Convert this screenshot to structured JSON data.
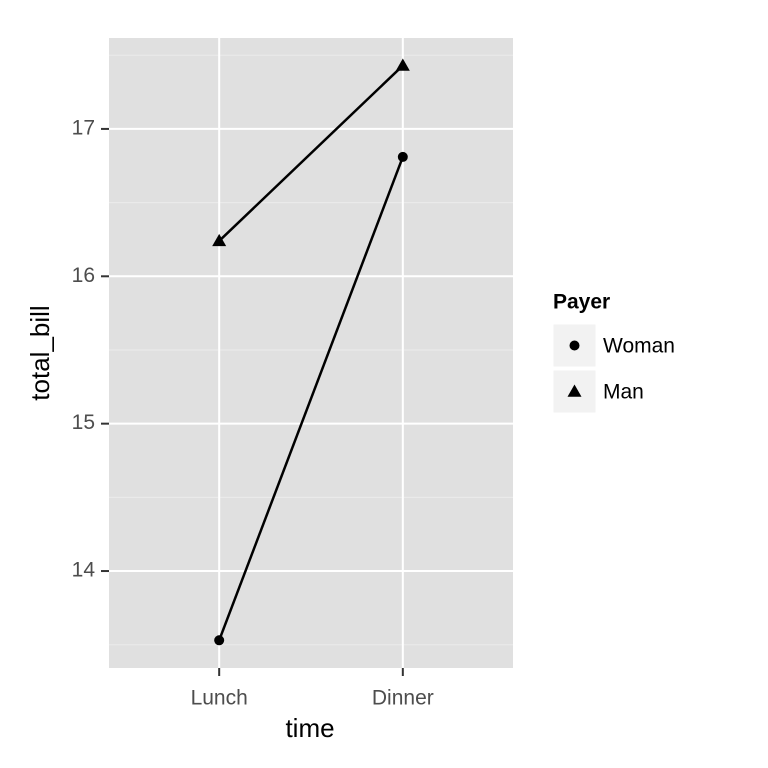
{
  "chart_data": {
    "type": "line",
    "x_label": "time",
    "y_label": "total_bill",
    "categories": [
      "Lunch",
      "Dinner"
    ],
    "series": [
      {
        "name": "Woman",
        "color": "#000000",
        "shape": "circle",
        "values": [
          13.53,
          16.81
        ]
      },
      {
        "name": "Man",
        "color": "#000000",
        "shape": "triangle",
        "values": [
          16.24,
          17.43
        ]
      }
    ],
    "ylim": [
      13.342,
      17.617
    ],
    "yticks": [
      14,
      15,
      16,
      17
    ],
    "grid": true,
    "legend_title": "Payer",
    "legend_position": "right"
  }
}
